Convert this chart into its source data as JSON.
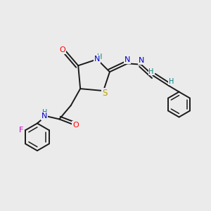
{
  "background_color": "#ebebeb",
  "bond_color": "#1a1a1a",
  "atom_colors": {
    "O": "#ff0000",
    "N": "#0000cc",
    "S": "#b8a000",
    "F": "#cc00cc",
    "H": "#008080",
    "C": "#1a1a1a"
  }
}
